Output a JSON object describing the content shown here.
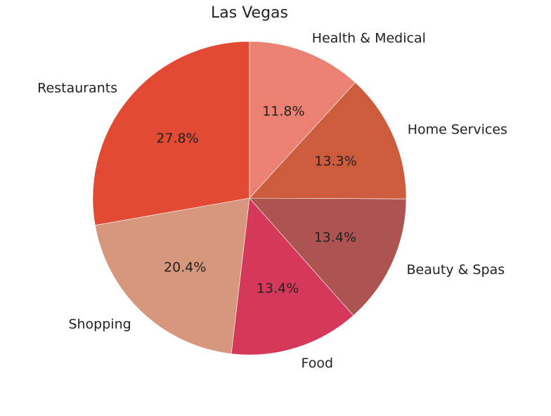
{
  "chart_data": {
    "type": "pie",
    "title": "Las Vegas",
    "start_angle_deg": 90,
    "direction": "counterclockwise",
    "slices": [
      {
        "label": "Restaurants",
        "value": 27.8,
        "pct_label": "27.8%",
        "color": "#E24A33"
      },
      {
        "label": "Shopping",
        "value": 20.4,
        "pct_label": "20.4%",
        "color": "#D6977D"
      },
      {
        "label": "Food",
        "value": 13.4,
        "pct_label": "13.4%",
        "color": "#D6385B"
      },
      {
        "label": "Beauty & Spas",
        "value": 13.4,
        "pct_label": "13.4%",
        "color": "#AD5350"
      },
      {
        "label": "Home Services",
        "value": 13.3,
        "pct_label": "13.3%",
        "color": "#CC5C3B"
      },
      {
        "label": "Health & Medical",
        "value": 11.8,
        "pct_label": "11.8%",
        "color": "#EB8173"
      }
    ]
  }
}
